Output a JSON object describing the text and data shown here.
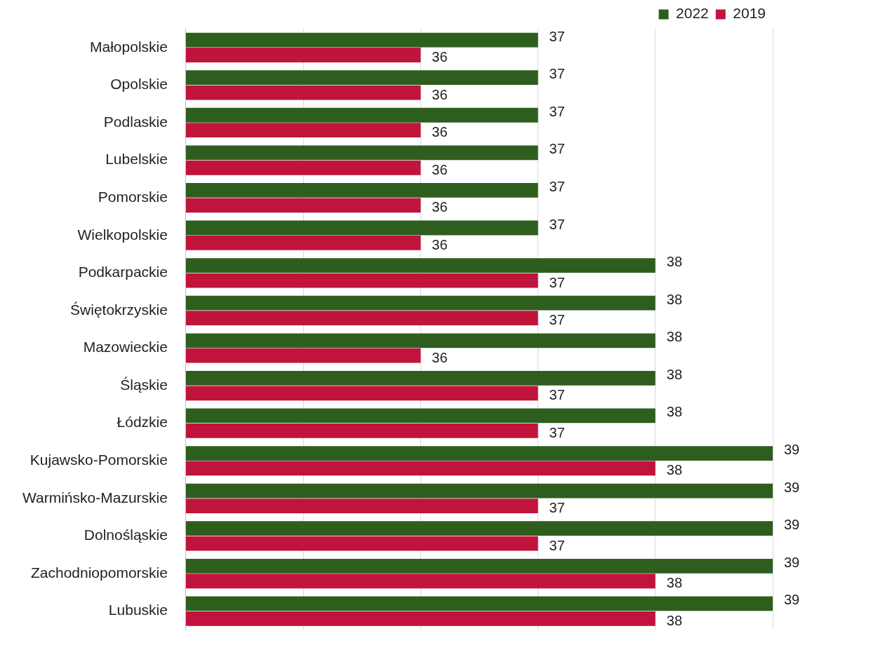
{
  "chart_data": {
    "type": "bar",
    "orientation": "horizontal",
    "categories": [
      "Małopolskie",
      "Opolskie",
      "Podlaskie",
      "Lubelskie",
      "Pomorskie",
      "Wielkopolskie",
      "Podkarpackie",
      "Świętokrzyskie",
      "Mazowieckie",
      "Śląskie",
      "Łódzkie",
      "Kujawsko-Pomorskie",
      "Warmińsko-Mazurskie",
      "Dolnośląskie",
      "Zachodniopomorskie",
      "Lubuskie"
    ],
    "series": [
      {
        "name": "2022",
        "color": "#2e5e1e",
        "values": [
          37,
          37,
          37,
          37,
          37,
          37,
          38,
          38,
          38,
          38,
          38,
          39,
          39,
          39,
          39,
          39
        ]
      },
      {
        "name": "2019",
        "color": "#c0143c",
        "values": [
          36,
          36,
          36,
          36,
          36,
          36,
          37,
          37,
          36,
          37,
          37,
          38,
          37,
          37,
          38,
          38
        ]
      }
    ],
    "xlim": [
      34,
      39
    ],
    "xticks": [
      {
        "value": 34,
        "label": null
      },
      {
        "value": 35,
        "label": null
      },
      {
        "value": 36,
        "label": null
      },
      {
        "value": 37,
        "label": null
      },
      {
        "value": 38,
        "label": null
      },
      {
        "value": 39,
        "label": null
      }
    ],
    "tick_labels": "y",
    "grid": "x",
    "legend": "top right",
    "data_labels": true
  }
}
